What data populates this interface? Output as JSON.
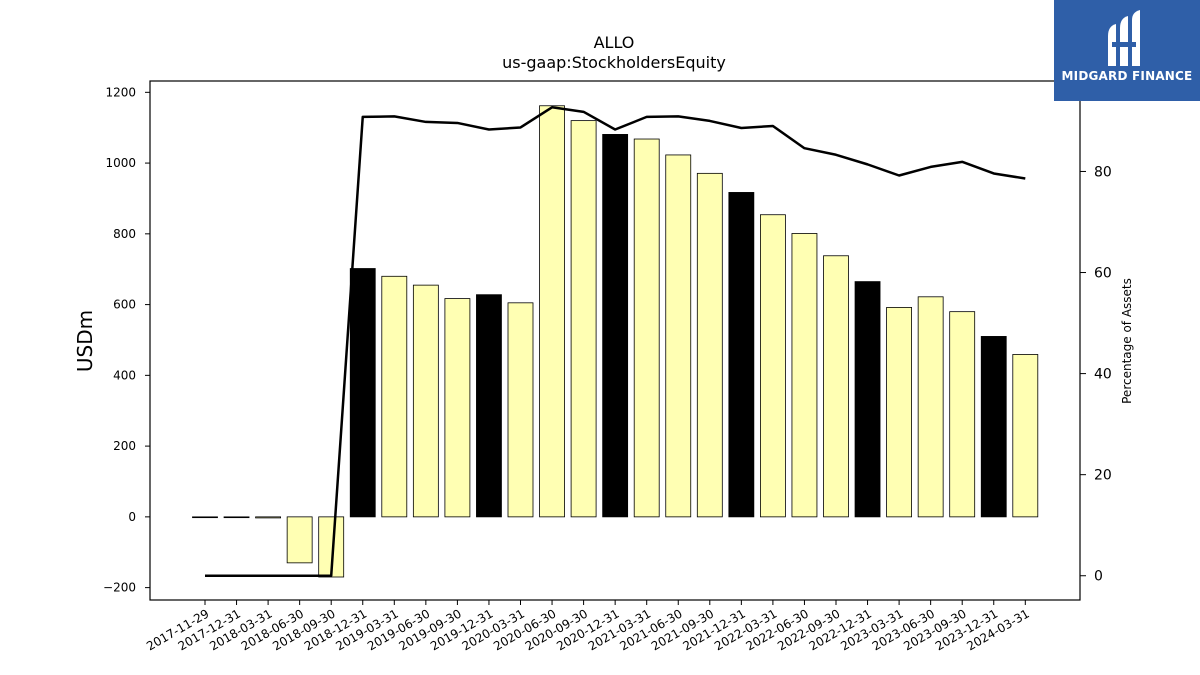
{
  "chart_data": {
    "type": "bar",
    "title": "ALLO",
    "subtitle": "us-gaap:StockholdersEquity",
    "ylabel": "USDm",
    "y2label": "Percentage of Assets",
    "ylim": [
      -235,
      1232
    ],
    "y2lim": [
      -4.8,
      97.9
    ],
    "yticks": [
      -200,
      0,
      200,
      400,
      600,
      800,
      1000,
      1200
    ],
    "y2ticks": [
      0,
      20,
      40,
      60,
      80
    ],
    "categories": [
      "2017-11-29",
      "2017-12-31",
      "2018-03-31",
      "2018-06-30",
      "2018-09-30",
      "2018-12-31",
      "2019-03-31",
      "2019-06-30",
      "2019-09-30",
      "2019-12-31",
      "2020-03-31",
      "2020-06-30",
      "2020-09-30",
      "2020-12-31",
      "2021-03-31",
      "2021-06-30",
      "2021-09-30",
      "2021-12-31",
      "2022-03-31",
      "2022-06-30",
      "2022-09-30",
      "2022-12-31",
      "2023-03-31",
      "2023-06-30",
      "2023-09-30",
      "2023-12-31",
      "2024-03-31"
    ],
    "series": [
      {
        "kind": "bar",
        "values": [
          0,
          0,
          -3,
          -130,
          -170,
          702,
          680,
          655,
          617,
          628,
          605,
          1162,
          1120,
          1081,
          1068,
          1023,
          971,
          917,
          854,
          801,
          738,
          665,
          592,
          622,
          580,
          510,
          459
        ],
        "year_end_quarter": [
          false,
          true,
          false,
          false,
          false,
          true,
          false,
          false,
          false,
          true,
          false,
          false,
          false,
          true,
          false,
          false,
          false,
          true,
          false,
          false,
          false,
          true,
          false,
          false,
          false,
          true,
          false
        ]
      },
      {
        "kind": "line",
        "axis": "right",
        "values": [
          0,
          0,
          0,
          0,
          0,
          90.8,
          90.9,
          89.8,
          89.6,
          88.3,
          88.7,
          92.7,
          91.8,
          88.3,
          90.8,
          90.9,
          90.0,
          88.6,
          89.0,
          84.6,
          83.3,
          81.4,
          79.2,
          80.9,
          81.9,
          79.6,
          78.6
        ]
      }
    ],
    "colors": {
      "bar": "#ffffb3",
      "bar_year_end": "#000000",
      "line": "#000000",
      "bar_edge": "#000000"
    },
    "grid": false
  },
  "logo": {
    "text": "MIDGARD FINANCE",
    "color": "#2f5fa8"
  }
}
